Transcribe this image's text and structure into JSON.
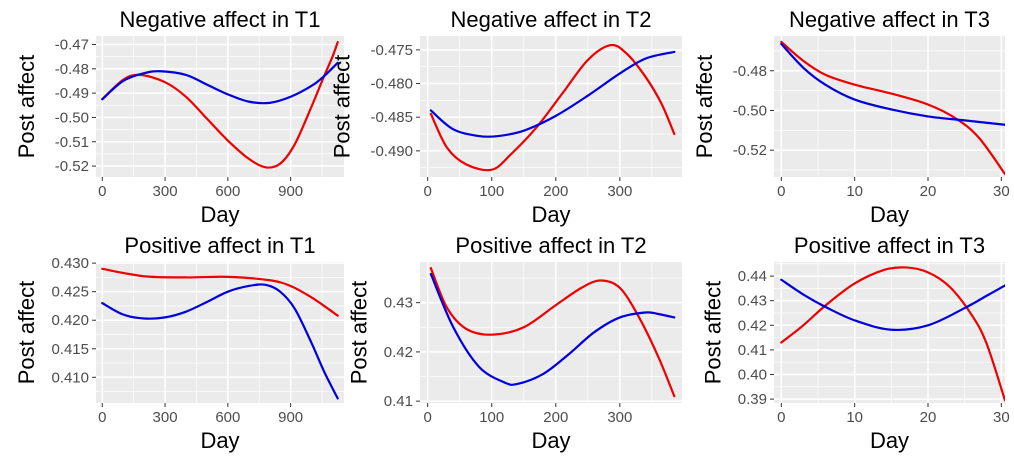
{
  "colors": {
    "panel_bg": "#ebebeb",
    "grid": "#ffffff",
    "tick": "#333333",
    "tick_label": "#4d4d4d",
    "red": "#ee0000",
    "blue": "#0000dd"
  },
  "chart_data": [
    {
      "type": "line",
      "title": "Negative affect in T1",
      "xlabel": "Day",
      "ylabel": "Post affect",
      "xlim": [
        -30,
        1155
      ],
      "ylim": [
        -0.5245,
        -0.4665
      ],
      "xticks": [
        0,
        300,
        600,
        900
      ],
      "xtick_labels": [
        "0",
        "300",
        "600",
        "900"
      ],
      "yticks": [
        -0.47,
        -0.48,
        -0.49,
        -0.5,
        -0.51,
        -0.52
      ],
      "ytick_labels": [
        "-0.47",
        "-0.48",
        "-0.49",
        "-0.50",
        "-0.51",
        "-0.52"
      ],
      "series": [
        {
          "color": "red",
          "x": [
            0,
            100,
            180,
            300,
            400,
            500,
            600,
            700,
            780,
            850,
            920,
            1000,
            1060,
            1100,
            1125
          ],
          "y": [
            -0.4925,
            -0.4845,
            -0.4825,
            -0.4855,
            -0.4915,
            -0.5005,
            -0.5095,
            -0.517,
            -0.5205,
            -0.519,
            -0.511,
            -0.4955,
            -0.483,
            -0.475,
            -0.469
          ]
        },
        {
          "color": "blue",
          "x": [
            0,
            100,
            200,
            280,
            400,
            500,
            600,
            700,
            800,
            900,
            1000,
            1060,
            1125
          ],
          "y": [
            -0.4925,
            -0.485,
            -0.4818,
            -0.481,
            -0.4825,
            -0.4865,
            -0.4905,
            -0.4935,
            -0.494,
            -0.4915,
            -0.487,
            -0.483,
            -0.4775
          ]
        }
      ]
    },
    {
      "type": "line",
      "title": "Negative affect in T2",
      "xlabel": "Day",
      "ylabel": "Post affect",
      "xlim": [
        -12,
        397
      ],
      "ylim": [
        -0.49388,
        -0.47294
      ],
      "xticks": [
        0,
        100,
        200,
        300
      ],
      "xtick_labels": [
        "0",
        "100",
        "200",
        "300"
      ],
      "yticks": [
        -0.475,
        -0.48,
        -0.485,
        -0.49
      ],
      "ytick_labels": [
        "-0.475",
        "-0.480",
        "-0.485",
        "-0.490"
      ],
      "series": [
        {
          "color": "red",
          "x": [
            5,
            30,
            60,
            100,
            130,
            170,
            210,
            250,
            285,
            310,
            340,
            365,
            385
          ],
          "y": [
            -0.4845,
            -0.4895,
            -0.492,
            -0.4928,
            -0.4905,
            -0.4865,
            -0.4815,
            -0.4765,
            -0.4743,
            -0.4755,
            -0.479,
            -0.483,
            -0.4875
          ]
        },
        {
          "color": "blue",
          "x": [
            5,
            40,
            80,
            110,
            150,
            200,
            250,
            300,
            340,
            385
          ],
          "y": [
            -0.484,
            -0.4868,
            -0.4878,
            -0.4878,
            -0.487,
            -0.4848,
            -0.4818,
            -0.4785,
            -0.4763,
            -0.4753
          ]
        }
      ]
    },
    {
      "type": "line",
      "title": "Negative affect in T3",
      "xlabel": "Day",
      "ylabel": "Post affect",
      "xlim": [
        -1,
        30.5
      ],
      "ylim": [
        -0.5335,
        -0.4625
      ],
      "xticks": [
        0,
        10,
        20,
        30
      ],
      "xtick_labels": [
        "0",
        "10",
        "20",
        "30"
      ],
      "yticks": [
        -0.48,
        -0.5,
        -0.52
      ],
      "ytick_labels": [
        "-0.48",
        "-0.50",
        "-0.52"
      ],
      "series": [
        {
          "color": "red",
          "x": [
            0,
            3,
            6,
            10,
            15,
            20,
            24,
            27,
            30.5
          ],
          "y": [
            -0.4655,
            -0.475,
            -0.482,
            -0.487,
            -0.4915,
            -0.497,
            -0.5045,
            -0.514,
            -0.532
          ]
        },
        {
          "color": "blue",
          "x": [
            0,
            3,
            6,
            10,
            15,
            20,
            25,
            30.5
          ],
          "y": [
            -0.4665,
            -0.4785,
            -0.487,
            -0.4945,
            -0.4995,
            -0.503,
            -0.505,
            -0.5072
          ]
        }
      ]
    },
    {
      "type": "line",
      "title": "Positive affect in T1",
      "xlabel": "Day",
      "ylabel": "Post affect",
      "xlim": [
        -30,
        1155
      ],
      "ylim": [
        0.4055,
        0.4302
      ],
      "xticks": [
        0,
        300,
        600,
        900
      ],
      "xtick_labels": [
        "0",
        "300",
        "600",
        "900"
      ],
      "yticks": [
        0.43,
        0.425,
        0.42,
        0.415,
        0.41
      ],
      "ytick_labels": [
        "0.430",
        "0.425",
        "0.420",
        "0.415",
        "0.410"
      ],
      "series": [
        {
          "color": "red",
          "x": [
            0,
            200,
            400,
            600,
            800,
            900,
            1000,
            1060,
            1125
          ],
          "y": [
            0.429,
            0.4277,
            0.4275,
            0.4276,
            0.427,
            0.426,
            0.424,
            0.4225,
            0.4208
          ]
        },
        {
          "color": "blue",
          "x": [
            0,
            100,
            200,
            300,
            400,
            500,
            600,
            700,
            780,
            850,
            920,
            1000,
            1060,
            1125
          ],
          "y": [
            0.423,
            0.421,
            0.4203,
            0.4205,
            0.4215,
            0.4232,
            0.425,
            0.426,
            0.4262,
            0.425,
            0.422,
            0.416,
            0.411,
            0.4063
          ]
        }
      ]
    },
    {
      "type": "line",
      "title": "Positive affect in T2",
      "xlabel": "Day",
      "ylabel": "Post affect",
      "xlim": [
        -12,
        397
      ],
      "ylim": [
        0.40963,
        0.43825
      ],
      "xticks": [
        0,
        100,
        200,
        300
      ],
      "xtick_labels": [
        "0",
        "100",
        "200",
        "300"
      ],
      "yticks": [
        0.43,
        0.42,
        0.41
      ],
      "ytick_labels": [
        "0.43",
        "0.42",
        "0.41"
      ],
      "series": [
        {
          "color": "red",
          "x": [
            5,
            30,
            60,
            100,
            150,
            200,
            240,
            270,
            300,
            330,
            360,
            385
          ],
          "y": [
            0.437,
            0.429,
            0.4247,
            0.4235,
            0.425,
            0.4295,
            0.433,
            0.4345,
            0.433,
            0.427,
            0.419,
            0.411
          ]
        },
        {
          "color": "blue",
          "x": [
            5,
            40,
            80,
            120,
            140,
            180,
            220,
            260,
            300,
            340,
            360,
            385
          ],
          "y": [
            0.4358,
            0.425,
            0.417,
            0.4138,
            0.4135,
            0.4155,
            0.4195,
            0.424,
            0.427,
            0.428,
            0.4277,
            0.427
          ]
        }
      ]
    },
    {
      "type": "line",
      "title": "Positive affect in T3",
      "xlabel": "Day",
      "ylabel": "Post affect",
      "xlim": [
        -1,
        30.5
      ],
      "ylim": [
        0.38842,
        0.44572
      ],
      "xticks": [
        0,
        10,
        20,
        30
      ],
      "xtick_labels": [
        "0",
        "10",
        "20",
        "30"
      ],
      "yticks": [
        0.44,
        0.43,
        0.42,
        0.41,
        0.4,
        0.39
      ],
      "ytick_labels": [
        "0.44",
        "0.43",
        "0.42",
        "0.41",
        "0.40",
        "0.39"
      ],
      "series": [
        {
          "color": "red",
          "x": [
            0,
            3,
            6,
            10,
            14,
            17,
            20,
            23,
            26,
            28,
            30.5
          ],
          "y": [
            0.413,
            0.42,
            0.428,
            0.437,
            0.4425,
            0.4435,
            0.4415,
            0.4355,
            0.424,
            0.4125,
            0.3895
          ]
        },
        {
          "color": "blue",
          "x": [
            0,
            3,
            6,
            10,
            15,
            20,
            25,
            28,
            30.5
          ],
          "y": [
            0.4385,
            0.4325,
            0.4275,
            0.422,
            0.4182,
            0.42,
            0.427,
            0.432,
            0.4362
          ]
        }
      ]
    }
  ]
}
